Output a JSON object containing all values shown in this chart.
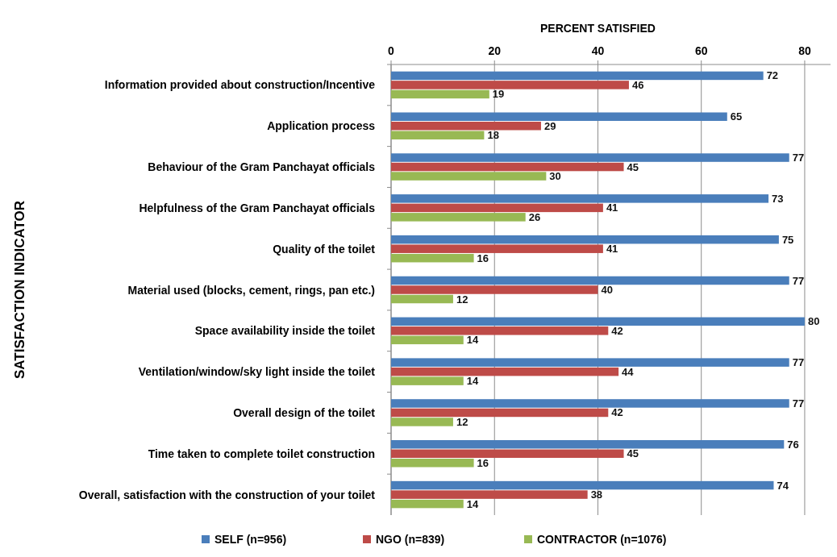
{
  "chart_data": {
    "type": "bar",
    "orientation": "horizontal",
    "xlabel": "PERCENT SATISFIED",
    "ylabel": "SATISFACTION INDICATOR",
    "categories": [
      "Information provided about construction/Incentive",
      "Application process",
      "Behaviour of the Gram Panchayat officials",
      "Helpfulness of the Gram Panchayat officials",
      "Quality of the toilet",
      "Material used (blocks, cement, rings, pan etc.)",
      "Space availability inside the toilet",
      "Ventilation/window/sky light inside the toilet",
      "Overall design of the toilet",
      "Time taken to complete toilet construction",
      "Overall, satisfaction with the construction of your toilet"
    ],
    "series": [
      {
        "name": "SELF (n=956)",
        "color": "#4a7ebb",
        "values": [
          72,
          65,
          77,
          73,
          75,
          77,
          80,
          77,
          77,
          76,
          74
        ]
      },
      {
        "name": "NGO (n=839)",
        "color": "#be4b48",
        "values": [
          46,
          29,
          45,
          41,
          41,
          40,
          42,
          44,
          42,
          45,
          38
        ]
      },
      {
        "name": "CONTRACTOR (n=1076)",
        "color": "#98b954",
        "values": [
          19,
          18,
          30,
          26,
          16,
          12,
          14,
          14,
          12,
          16,
          14
        ]
      }
    ],
    "xlim": [
      0,
      85
    ],
    "xticks": [
      0,
      20,
      40,
      60,
      80
    ],
    "grid": "x",
    "legend": "bottom",
    "data_labels": true
  }
}
